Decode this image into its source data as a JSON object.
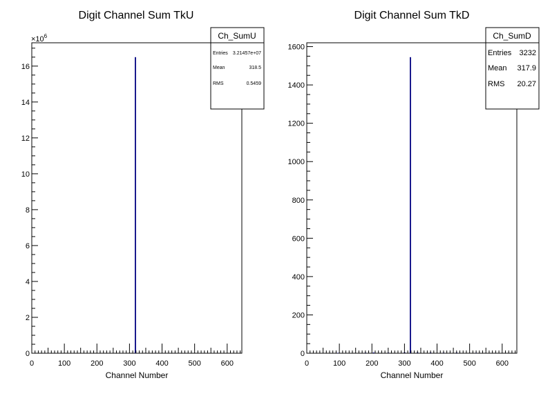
{
  "chart_data": [
    {
      "type": "bar",
      "name": "Ch_SumU",
      "title": "Digit Channel Sum TkU",
      "xlabel": "Channel Number",
      "ylabel": "",
      "xlim": [
        0,
        645
      ],
      "ylim": [
        0,
        17300000
      ],
      "y_exponent_label": "×10",
      "y_exponent_power": "6",
      "y_tick_scale": 1000000,
      "x_ticks": [
        0,
        100,
        200,
        300,
        400,
        500,
        600
      ],
      "y_ticks": [
        0,
        2,
        4,
        6,
        8,
        10,
        12,
        14,
        16
      ],
      "grid": false,
      "line_color": "#000080",
      "stats": {
        "title": "Ch_SumU",
        "rows": [
          {
            "label": "Entries",
            "value": "3.21457e+07"
          },
          {
            "label": "Mean",
            "value": "318.5"
          },
          {
            "label": "RMS",
            "value": "0.5459"
          }
        ]
      },
      "bins": [
        {
          "x": 318,
          "value": 16500000
        }
      ]
    },
    {
      "type": "bar",
      "name": "Ch_SumD",
      "title": "Digit Channel Sum TkD",
      "xlabel": "Channel Number",
      "ylabel": "",
      "xlim": [
        0,
        645
      ],
      "ylim": [
        0,
        1620
      ],
      "x_ticks": [
        0,
        100,
        200,
        300,
        400,
        500,
        600
      ],
      "y_ticks": [
        0,
        200,
        400,
        600,
        800,
        1000,
        1200,
        1400,
        1600
      ],
      "grid": false,
      "line_color": "#000080",
      "stats": {
        "title": "Ch_SumD",
        "rows": [
          {
            "label": "Entries",
            "value": "3232"
          },
          {
            "label": "Mean",
            "value": "317.9"
          },
          {
            "label": "RMS",
            "value": "20.27"
          }
        ]
      },
      "bins": [
        {
          "x": 95,
          "value": 2
        },
        {
          "x": 180,
          "value": 3
        },
        {
          "x": 205,
          "value": 4
        },
        {
          "x": 250,
          "value": 3
        },
        {
          "x": 300,
          "value": 6
        },
        {
          "x": 318,
          "value": 1545
        },
        {
          "x": 340,
          "value": 5
        },
        {
          "x": 380,
          "value": 4
        },
        {
          "x": 420,
          "value": 3
        },
        {
          "x": 460,
          "value": 4
        },
        {
          "x": 520,
          "value": 2
        }
      ]
    }
  ]
}
